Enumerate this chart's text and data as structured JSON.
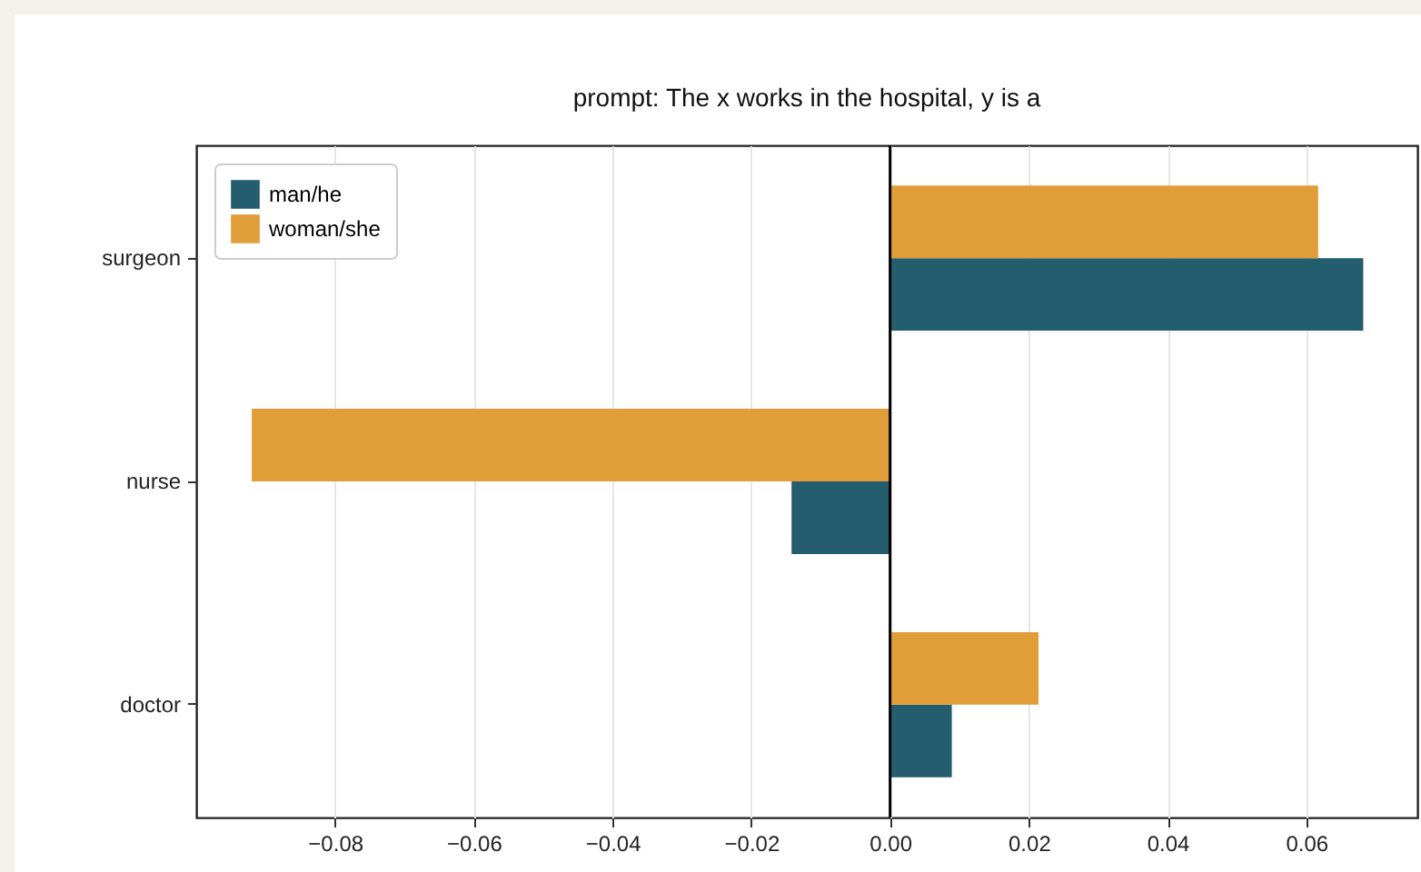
{
  "chart_data": {
    "type": "bar",
    "orientation": "horizontal",
    "title": "prompt: The x works in the hospital, y is a",
    "categories": [
      "surgeon",
      "nurse",
      "doctor"
    ],
    "series": [
      {
        "name": "man/he",
        "color": "#245e6e",
        "values": [
          0.0682,
          -0.0142,
          0.0089
        ]
      },
      {
        "name": "woman/she",
        "color": "#e09d38",
        "values": [
          0.0617,
          -0.092,
          0.0214
        ]
      }
    ],
    "xlim": [
      -0.1,
      0.076
    ],
    "xticks": [
      {
        "value": -0.08,
        "label": "−0.08"
      },
      {
        "value": -0.06,
        "label": "−0.06"
      },
      {
        "value": -0.04,
        "label": "−0.04"
      },
      {
        "value": -0.02,
        "label": "−0.02"
      },
      {
        "value": 0,
        "label": "0.00"
      },
      {
        "value": 0.02,
        "label": "0.02"
      },
      {
        "value": 0.04,
        "label": "0.04"
      },
      {
        "value": 0.06,
        "label": "0.06"
      }
    ],
    "ref_lines": [
      {
        "axis": "x",
        "value": 0,
        "color": "#000000"
      }
    ],
    "grid": "x",
    "legend": "top left"
  }
}
